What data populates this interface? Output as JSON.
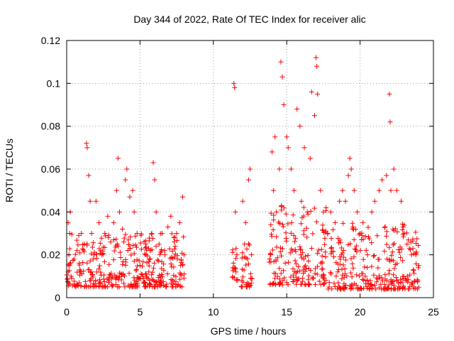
{
  "chart_data": {
    "type": "scatter",
    "title": "Day 344 of 2022, Rate Of TEC Index for receiver alic",
    "xlabel": "GPS time / hours",
    "ylabel": "ROTI / TECUs",
    "xlim": [
      0,
      25
    ],
    "ylim": [
      0,
      0.12
    ],
    "x_ticks": [
      0,
      5,
      10,
      15,
      20,
      25
    ],
    "y_ticks": [
      0,
      0.02,
      0.04,
      0.06,
      0.08,
      0.1,
      0.12
    ],
    "x_tick_labels": [
      "0",
      "5",
      "10",
      "15",
      "20",
      "25"
    ],
    "y_tick_labels": [
      "0",
      "0.02",
      "0.04",
      "0.06",
      "0.08",
      "0.1",
      "0.12"
    ],
    "grid": true,
    "marker": "+",
    "color": "#ff0000",
    "series": [
      {
        "points": [
          [
            0.05,
            0.009
          ],
          [
            0.1,
            0.012
          ],
          [
            0.15,
            0.02
          ],
          [
            0.2,
            0.03
          ],
          [
            0.25,
            0.04
          ],
          [
            0.1,
            0.035
          ],
          [
            0.2,
            0.015
          ],
          [
            0.3,
            0.01
          ],
          [
            0.5,
            0.018
          ],
          [
            0.7,
            0.022
          ],
          [
            0.9,
            0.013
          ],
          [
            1.0,
            0.03
          ],
          [
            1.2,
            0.025
          ],
          [
            1.35,
            0.072
          ],
          [
            1.4,
            0.07
          ],
          [
            1.5,
            0.057
          ],
          [
            1.6,
            0.045
          ],
          [
            1.7,
            0.03
          ],
          [
            1.8,
            0.018
          ],
          [
            2.0,
            0.045
          ],
          [
            2.2,
            0.035
          ],
          [
            2.4,
            0.02
          ],
          [
            2.6,
            0.03
          ],
          [
            2.8,
            0.038
          ],
          [
            3.0,
            0.026
          ],
          [
            3.2,
            0.035
          ],
          [
            3.4,
            0.05
          ],
          [
            3.5,
            0.065
          ],
          [
            3.6,
            0.04
          ],
          [
            3.8,
            0.032
          ],
          [
            4.0,
            0.055
          ],
          [
            4.1,
            0.06
          ],
          [
            4.3,
            0.047
          ],
          [
            4.5,
            0.05
          ],
          [
            4.6,
            0.04
          ],
          [
            4.8,
            0.03
          ],
          [
            5.0,
            0.015
          ],
          [
            5.2,
            0.01
          ],
          [
            5.4,
            0.02
          ],
          [
            5.6,
            0.012
          ],
          [
            5.8,
            0.03
          ],
          [
            5.9,
            0.063
          ],
          [
            6.0,
            0.055
          ],
          [
            6.1,
            0.04
          ],
          [
            6.3,
            0.025
          ],
          [
            6.5,
            0.03
          ],
          [
            6.7,
            0.02
          ],
          [
            6.9,
            0.033
          ],
          [
            7.1,
            0.038
          ],
          [
            7.3,
            0.028
          ],
          [
            7.5,
            0.03
          ],
          [
            7.7,
            0.035
          ],
          [
            7.9,
            0.047
          ],
          [
            8.0,
            0.02
          ],
          [
            11.4,
            0.1
          ],
          [
            11.45,
            0.098
          ],
          [
            11.5,
            0.04
          ],
          [
            11.6,
            0.02
          ],
          [
            12.0,
            0.045
          ],
          [
            12.2,
            0.035
          ],
          [
            12.4,
            0.055
          ],
          [
            12.5,
            0.06
          ],
          [
            12.6,
            0.02
          ],
          [
            13.9,
            0.02
          ],
          [
            14.0,
            0.068
          ],
          [
            14.1,
            0.05
          ],
          [
            14.2,
            0.075
          ],
          [
            14.3,
            0.04
          ],
          [
            14.5,
            0.06
          ],
          [
            14.6,
            0.11
          ],
          [
            14.7,
            0.103
          ],
          [
            14.8,
            0.09
          ],
          [
            15.0,
            0.075
          ],
          [
            15.1,
            0.07
          ],
          [
            15.3,
            0.06
          ],
          [
            15.5,
            0.05
          ],
          [
            15.7,
            0.088
          ],
          [
            15.9,
            0.08
          ],
          [
            16.0,
            0.045
          ],
          [
            16.2,
            0.07
          ],
          [
            16.4,
            0.04
          ],
          [
            16.6,
            0.065
          ],
          [
            16.7,
            0.096
          ],
          [
            16.9,
            0.085
          ],
          [
            17.0,
            0.112
          ],
          [
            17.05,
            0.108
          ],
          [
            17.1,
            0.095
          ],
          [
            17.3,
            0.05
          ],
          [
            17.5,
            0.04
          ],
          [
            17.8,
            0.03
          ],
          [
            18.0,
            0.04
          ],
          [
            18.3,
            0.035
          ],
          [
            18.6,
            0.045
          ],
          [
            18.8,
            0.05
          ],
          [
            19.0,
            0.045
          ],
          [
            19.2,
            0.057
          ],
          [
            19.3,
            0.065
          ],
          [
            19.4,
            0.06
          ],
          [
            19.6,
            0.05
          ],
          [
            19.8,
            0.04
          ],
          [
            20.0,
            0.03
          ],
          [
            20.2,
            0.035
          ],
          [
            20.5,
            0.02
          ],
          [
            20.8,
            0.04
          ],
          [
            21.0,
            0.045
          ],
          [
            21.3,
            0.05
          ],
          [
            21.5,
            0.055
          ],
          [
            21.8,
            0.057
          ],
          [
            22.0,
            0.095
          ],
          [
            22.05,
            0.082
          ],
          [
            22.1,
            0.05
          ],
          [
            22.3,
            0.06
          ],
          [
            22.5,
            0.05
          ],
          [
            22.8,
            0.045
          ],
          [
            23.0,
            0.03
          ],
          [
            23.2,
            0.025
          ],
          [
            23.5,
            0.02
          ],
          [
            23.8,
            0.02
          ],
          [
            24.0,
            0.015
          ]
        ],
        "bands": [
          {
            "x": [
              0.0,
              8.05
            ],
            "y": [
              0.005,
              0.03
            ]
          },
          {
            "x": [
              11.3,
              11.7
            ],
            "y": [
              0.008,
              0.025
            ]
          },
          {
            "x": [
              11.9,
              12.65
            ],
            "y": [
              0.005,
              0.03
            ]
          },
          {
            "x": [
              13.8,
              17.8
            ],
            "y": [
              0.006,
              0.045
            ]
          },
          {
            "x": [
              17.8,
              24.0
            ],
            "y": [
              0.004,
              0.035
            ]
          }
        ]
      }
    ]
  }
}
